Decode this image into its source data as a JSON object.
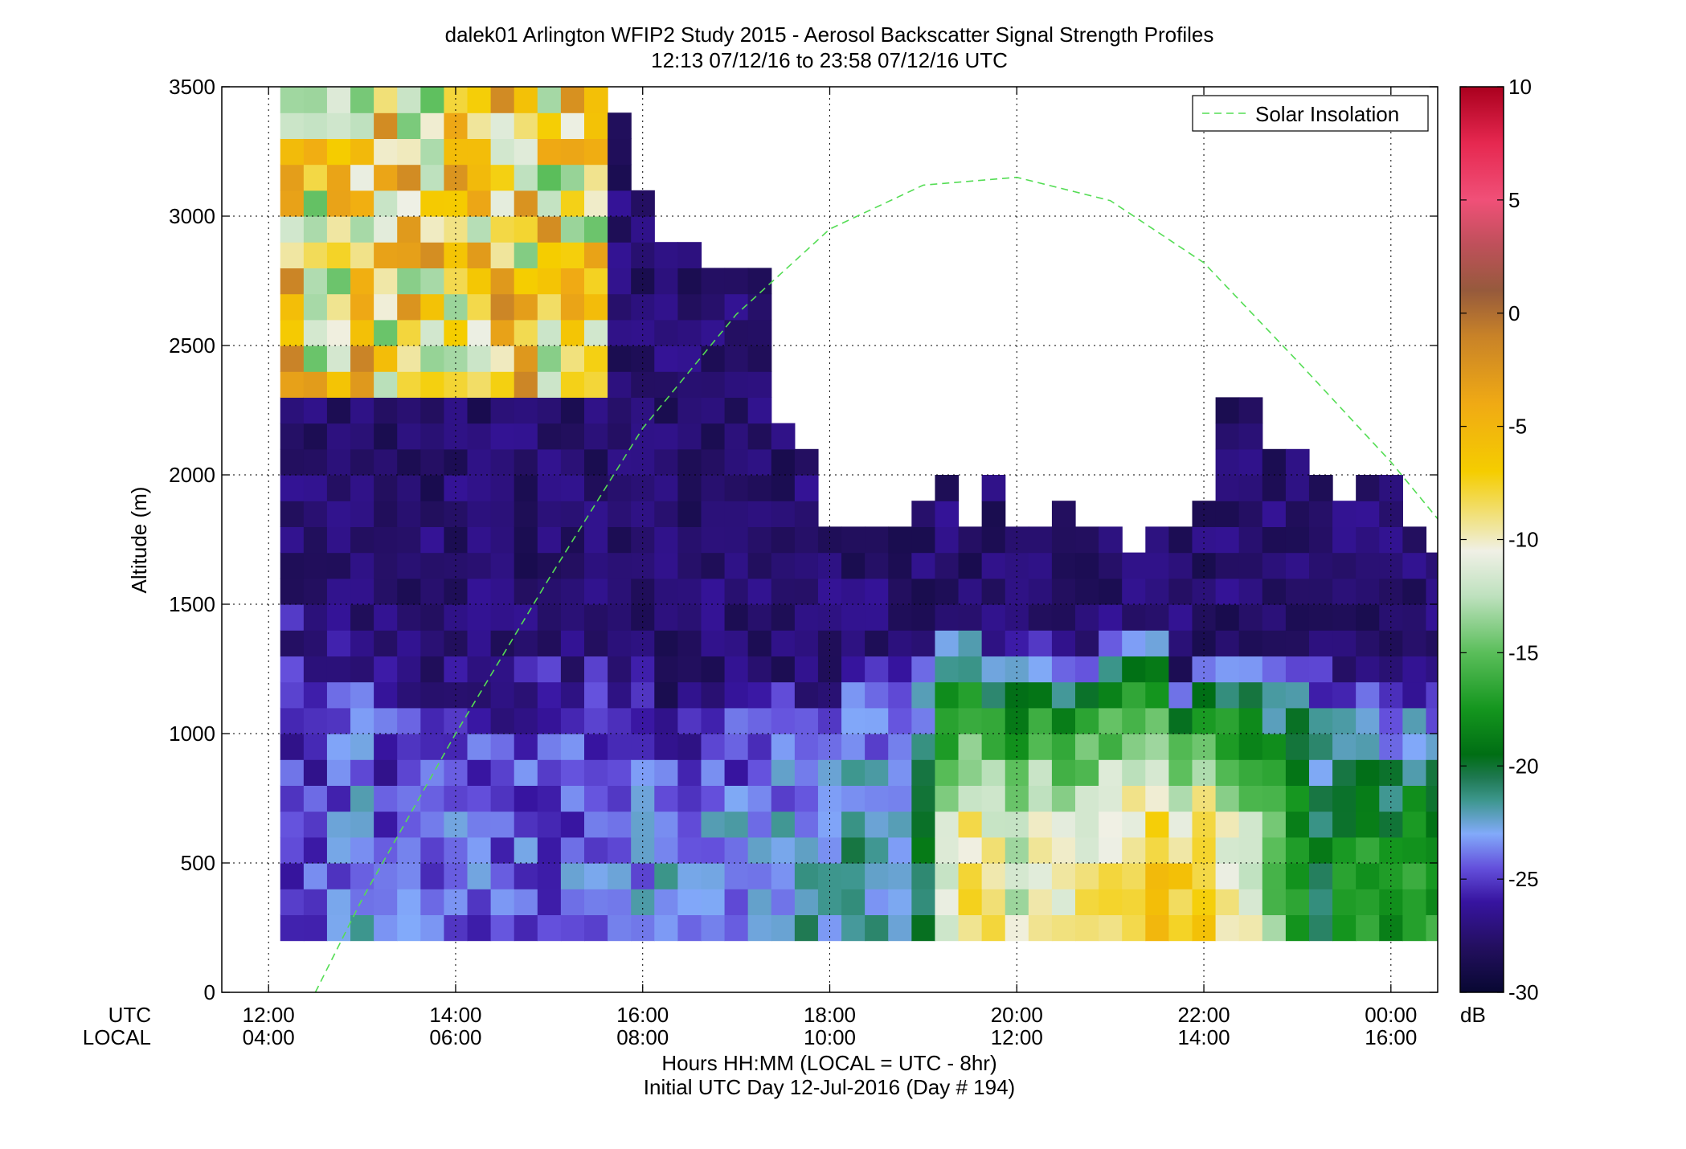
{
  "chart_data": {
    "type": "heatmap",
    "title": "dalek01 Arlington WFIP2 Study 2015 - Aerosol Backscatter Signal Strength Profiles",
    "subtitle": "12:13 07/12/16 to 23:58 07/12/16  UTC",
    "ylabel": "Altitude (m)",
    "xlabel": "Hours HH:MM  (LOCAL = UTC - 8hr)",
    "xlabel2": "Initial UTC Day 12-Jul-2016 (Day # 194)",
    "x_row_labels": [
      "UTC",
      "LOCAL"
    ],
    "xlim_hours": [
      11.5,
      24.5
    ],
    "ylim": [
      0,
      3500
    ],
    "x_ticks": [
      {
        "hour": 12,
        "utc": "12:00",
        "local": "04:00"
      },
      {
        "hour": 14,
        "utc": "14:00",
        "local": "06:00"
      },
      {
        "hour": 16,
        "utc": "16:00",
        "local": "08:00"
      },
      {
        "hour": 18,
        "utc": "18:00",
        "local": "10:00"
      },
      {
        "hour": 20,
        "utc": "20:00",
        "local": "12:00"
      },
      {
        "hour": 22,
        "utc": "22:00",
        "local": "14:00"
      },
      {
        "hour": 24,
        "utc": "00:00",
        "local": "16:00"
      }
    ],
    "y_ticks": [
      0,
      500,
      1000,
      1500,
      2000,
      2500,
      3000,
      3500
    ],
    "grid": true,
    "legend": {
      "label": "Solar Insolation",
      "placement": "top-right",
      "color": "#55dd55",
      "style": "dashed"
    },
    "colorbar": {
      "label": "dB",
      "range": [
        -30,
        10
      ],
      "ticks": [
        10,
        5,
        0,
        -5,
        -10,
        -15,
        -20,
        -25,
        -30
      ]
    },
    "heatmap": {
      "x_start_hour": 12.25,
      "x_step_hours": 0.25,
      "y_start_m": 200,
      "y_step_m": 100,
      "cell_units": "dB",
      "column_tops_m": [
        3500,
        3500,
        3500,
        3500,
        3500,
        3500,
        3500,
        3500,
        3500,
        3500,
        3500,
        3500,
        3500,
        3500,
        3400,
        3100,
        2900,
        2900,
        2800,
        2800,
        2800,
        2200,
        2100,
        1800,
        1800,
        1800,
        1800,
        1900,
        2000,
        1800,
        2000,
        1800,
        1800,
        1900,
        1800,
        1800,
        1700,
        1800,
        1800,
        1900,
        2300,
        2300,
        2100,
        2100,
        2000,
        1900,
        2000,
        2000,
        1800,
        1700
      ],
      "surface_values_db": [
        -24.5,
        -25.2,
        -24.0,
        -23.0,
        -24.5,
        -24.0,
        -24.3,
        -24.0,
        -24.2,
        -24.0,
        -24.0,
        -24.2,
        -24.0,
        -24.3,
        -24.1,
        -23.2,
        -23.0,
        -23.5,
        -23.0,
        -23.0,
        -23.2,
        -22.5,
        -22.0,
        -21.8,
        -21.5,
        -22.0,
        -21.2,
        -19.8,
        -11.0,
        -8.0,
        -9.0,
        -12.0,
        -10.0,
        -10.0,
        -9.0,
        -9.0,
        -7.5,
        -6.5,
        -7.0,
        -6.0,
        -9.5,
        -11.0,
        -14.0,
        -16.0,
        -19.5,
        -18.0,
        -17.0,
        -18.5,
        -17.5,
        -17.0
      ],
      "boundary_layer_top_m": [
        1500,
        1500,
        1500,
        1400,
        1500,
        1300,
        1300,
        1300,
        1300,
        1300,
        1300,
        1300,
        1300,
        1300,
        1300,
        1300,
        1100,
        1100,
        1100,
        1200,
        1200,
        1200,
        1200,
        1200,
        1300,
        1300,
        1300,
        1400,
        1400,
        1400,
        1300,
        1400,
        1400,
        1300,
        1300,
        1400,
        1400,
        1400,
        1200,
        1300,
        1300,
        1300,
        1300,
        1300,
        1300,
        1200,
        1200,
        1200,
        1200,
        1200
      ]
    },
    "solar_insolation": {
      "x_hours": [
        12.5,
        13.0,
        14.0,
        15.0,
        16.0,
        17.0,
        18.0,
        19.0,
        20.0,
        21.0,
        22.0,
        23.0,
        24.0,
        24.5
      ],
      "y_m": [
        0,
        360,
        1000,
        1600,
        2180,
        2620,
        2950,
        3120,
        3150,
        3060,
        2820,
        2440,
        2050,
        1830
      ]
    }
  }
}
